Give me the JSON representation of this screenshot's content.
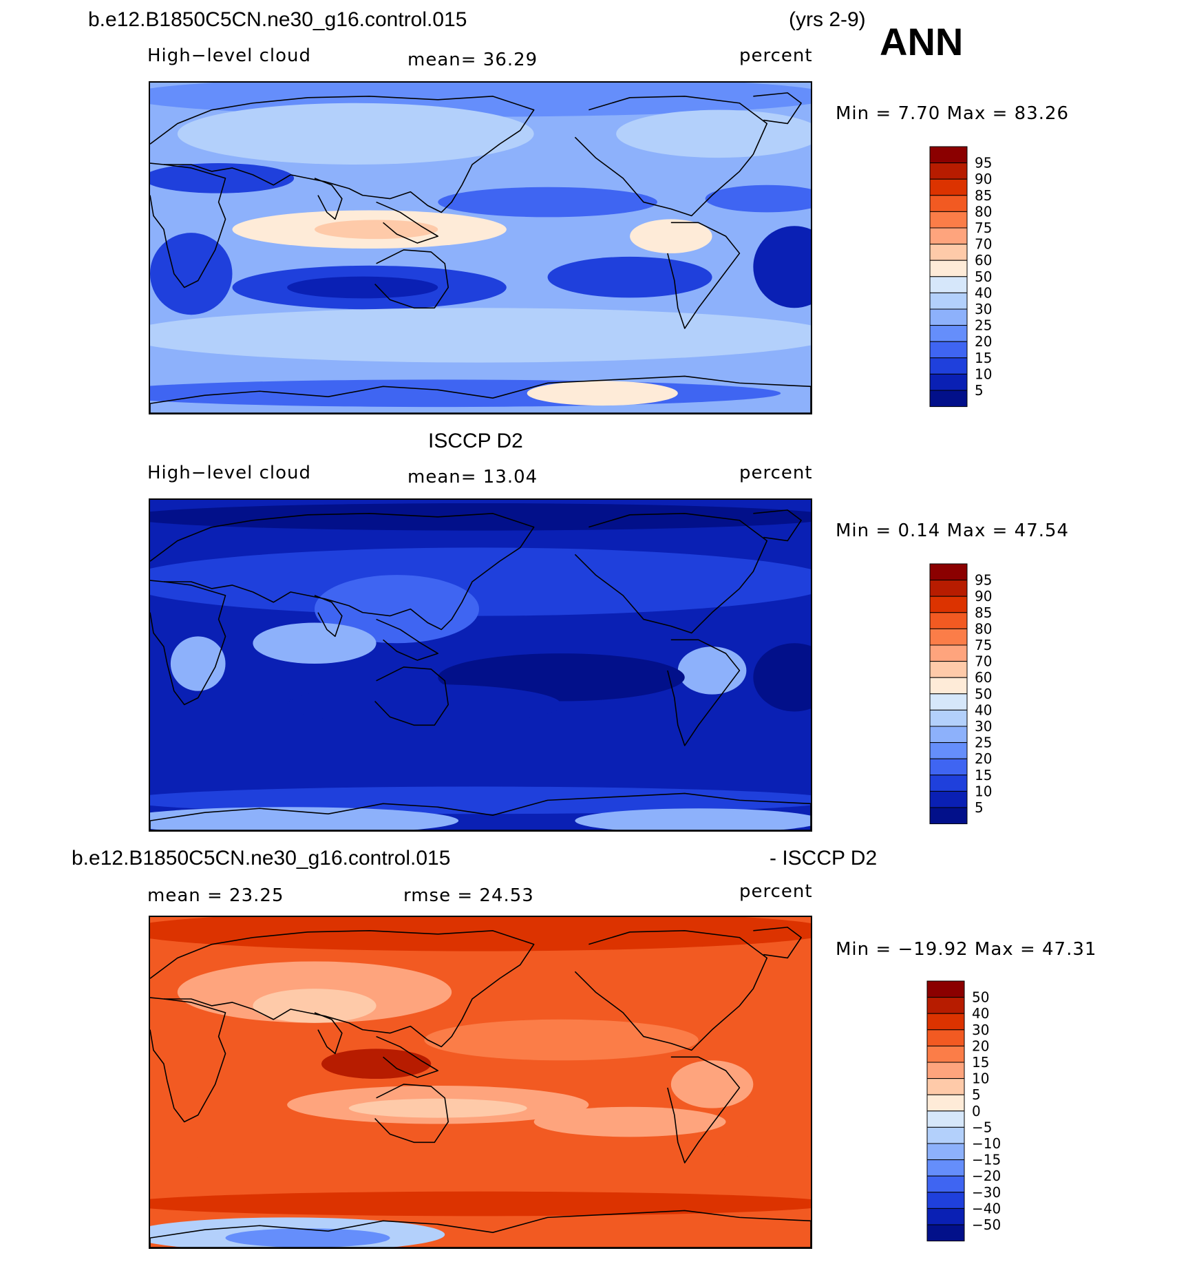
{
  "header": {
    "case_name": "b.e12.B1850C5CN.ne30_g16.control.015",
    "years": "(yrs 2-9)",
    "season": "ANN"
  },
  "panels": [
    {
      "id": "model",
      "left_label": "High−level cloud",
      "center_label": "mean=   36.29",
      "right_label": "percent",
      "minmax": "Min =     7.70 Max =   83.26",
      "palette": "cloud"
    },
    {
      "id": "obs",
      "title": "ISCCP D2",
      "left_label": "High−level cloud",
      "center_label": "mean=   13.04",
      "right_label": "percent",
      "minmax": "Min =     0.14 Max =   47.54",
      "palette": "cloud"
    },
    {
      "id": "diff",
      "title_left": "b.e12.B1850C5CN.ne30_g16.control.015",
      "title_right": "- ISCCP D2",
      "left_label": "mean =   23.25",
      "center_label": "rmse =   24.53",
      "right_label": "percent",
      "minmax": "Min = −19.92 Max =   47.31",
      "palette": "diff"
    }
  ],
  "colorbars": {
    "cloud_labels": [
      "95",
      "90",
      "85",
      "80",
      "75",
      "70",
      "60",
      "50",
      "40",
      "30",
      "25",
      "20",
      "15",
      "10",
      "5"
    ],
    "diff_labels": [
      "50",
      "40",
      "30",
      "20",
      "15",
      "10",
      "5",
      "0",
      "−5",
      "−10",
      "−15",
      "−20",
      "−30",
      "−40",
      "−50"
    ]
  },
  "palette_colors": [
    "#8b0000",
    "#b71c00",
    "#dc3300",
    "#f25a22",
    "#fb7d48",
    "#fea47d",
    "#fecaa9",
    "#feebd8",
    "#d6e7fa",
    "#b3d0fb",
    "#8db1fb",
    "#658efb",
    "#3f65f2",
    "#1f40dc",
    "#0a20b4",
    "#02108a"
  ],
  "chart_data": [
    {
      "type": "heatmap",
      "title": "High−level cloud",
      "units": "percent",
      "mean": 36.29,
      "min": 7.7,
      "max": 83.26,
      "levels": [
        5,
        10,
        15,
        20,
        25,
        30,
        40,
        50,
        60,
        70,
        75,
        80,
        85,
        90,
        95
      ]
    },
    {
      "type": "heatmap",
      "title": "ISCCP D2",
      "units": "percent",
      "mean": 13.04,
      "min": 0.14,
      "max": 47.54,
      "levels": [
        5,
        10,
        15,
        20,
        25,
        30,
        40,
        50,
        60,
        70,
        75,
        80,
        85,
        90,
        95
      ]
    },
    {
      "type": "heatmap",
      "title": "b.e12.B1850C5CN.ne30_g16.control.015 - ISCCP D2",
      "units": "percent",
      "mean": 23.25,
      "rmse": 24.53,
      "min": -19.92,
      "max": 47.31,
      "levels": [
        -50,
        -40,
        -30,
        -20,
        -15,
        -10,
        -5,
        0,
        5,
        10,
        15,
        20,
        30,
        40,
        50
      ]
    }
  ]
}
